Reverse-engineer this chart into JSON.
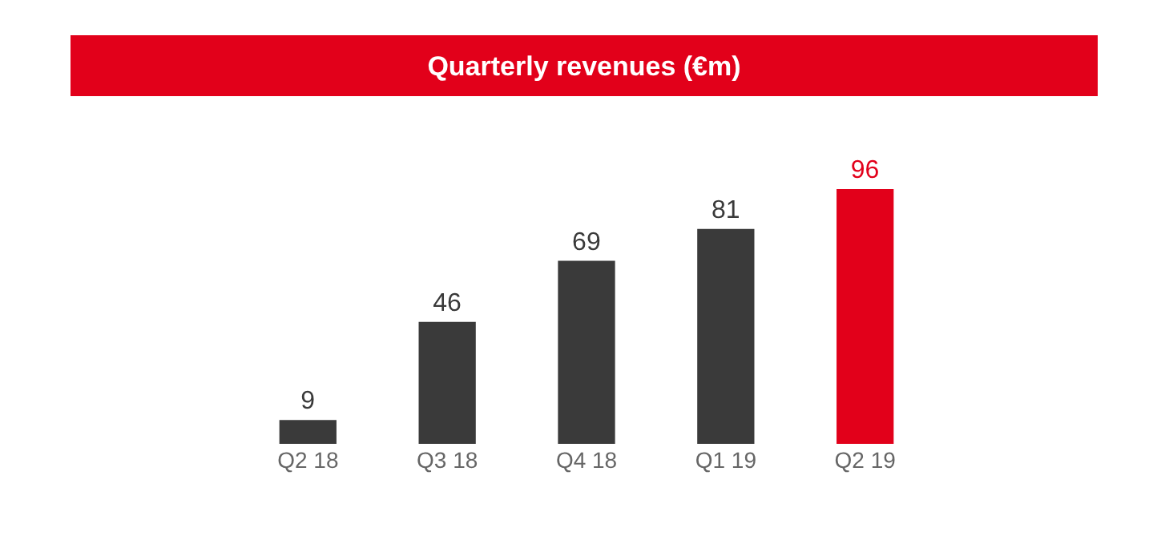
{
  "chart_data": {
    "type": "bar",
    "title": "Quarterly revenues (€m)",
    "categories": [
      "Q2 18",
      "Q3 18",
      "Q4 18",
      "Q1 19",
      "Q2 19"
    ],
    "values": [
      9,
      46,
      69,
      81,
      96
    ],
    "colors": [
      "#3a3a3a",
      "#3a3a3a",
      "#3a3a3a",
      "#3a3a3a",
      "#e2001a"
    ],
    "data_labels": true
  }
}
